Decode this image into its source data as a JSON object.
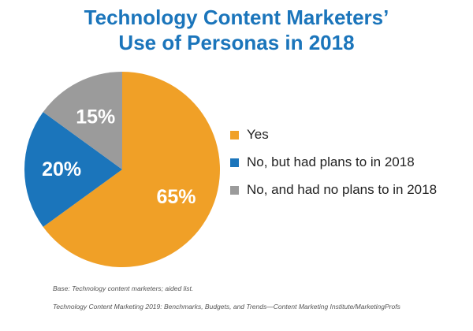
{
  "chart_data": {
    "type": "pie",
    "title": [
      "Technology Content Marketers’",
      "Use of Personas in 2018"
    ],
    "slices": [
      {
        "label": "Yes",
        "value": 65,
        "display": "65%",
        "color": "#f0a027"
      },
      {
        "label": "No, but had plans to in 2018",
        "value": 20,
        "display": "20%",
        "color": "#1b75bb"
      },
      {
        "label": "No, and had no plans to in 2018",
        "value": 15,
        "display": "15%",
        "color": "#9b9b9b"
      }
    ],
    "legend_position": "right"
  },
  "footnotes": {
    "base": "Base: Technology content marketers; aided list.",
    "source": "Technology Content Marketing 2019: Benchmarks, Budgets, and Trends—Content Marketing Institute/MarketingProfs"
  }
}
